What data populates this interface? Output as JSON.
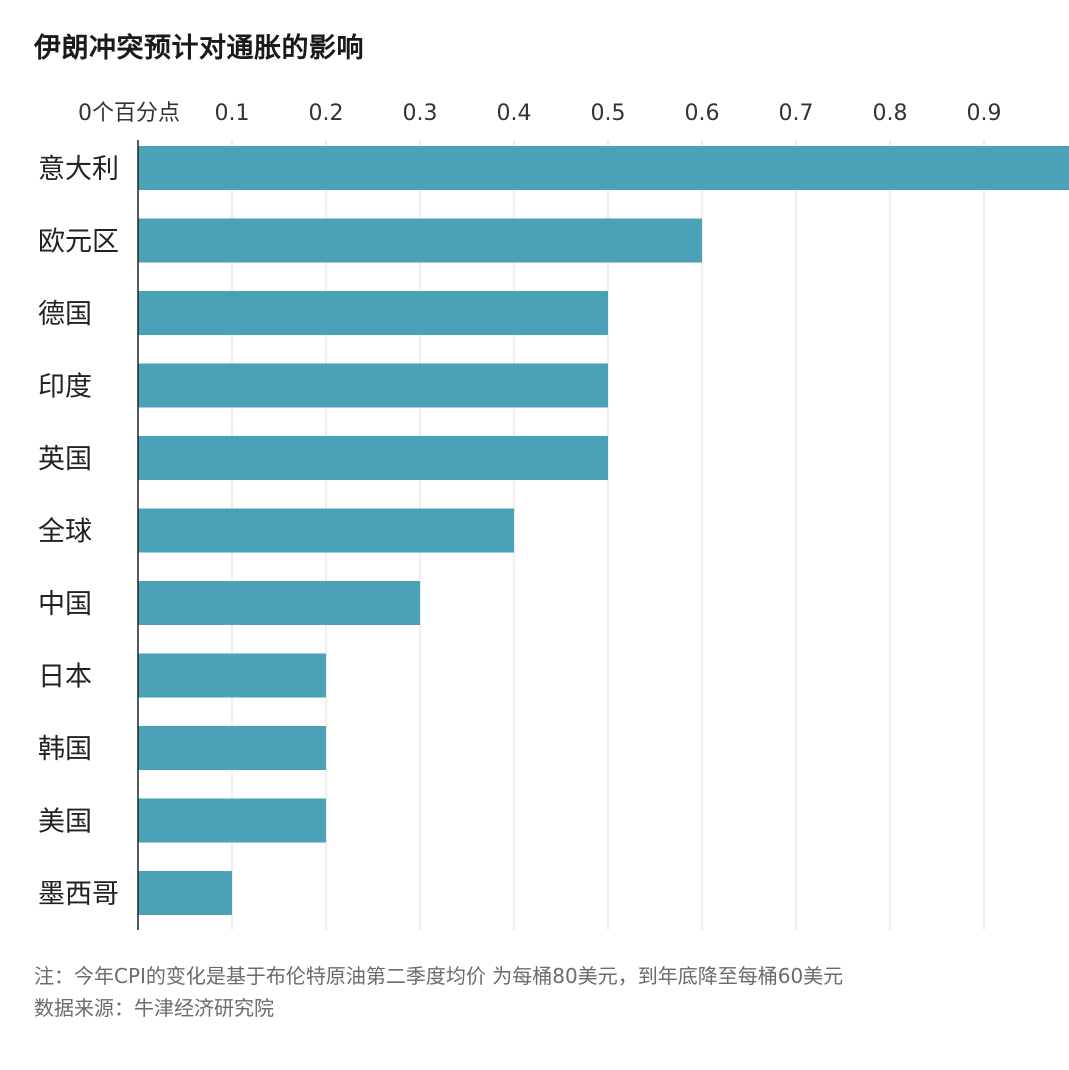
{
  "chart_data": {
    "type": "bar",
    "orientation": "horizontal",
    "title": "伊朗冲突预计对通胀的影响",
    "categories": [
      "意大利",
      "欧元区",
      "德国",
      "印度",
      "英国",
      "全球",
      "中国",
      "日本",
      "韩国",
      "美国",
      "墨西哥"
    ],
    "values": [
      1.0,
      0.6,
      0.5,
      0.5,
      0.5,
      0.4,
      0.3,
      0.2,
      0.2,
      0.2,
      0.1
    ],
    "xlim": [
      0,
      1.0
    ],
    "tick_labels": [
      "0个百分点",
      "0.1",
      "0.2",
      "0.3",
      "0.4",
      "0.5",
      "0.6",
      "0.7",
      "0.8",
      "0.9"
    ],
    "tick_values": [
      0,
      0.1,
      0.2,
      0.3,
      0.4,
      0.5,
      0.6,
      0.7,
      0.8,
      0.9
    ],
    "axis_position": "top",
    "grid": true,
    "bar_color": "#4ba1b7"
  },
  "footnote": {
    "note": "注：今年CPI的变化是基于布伦特原油第二季度均价 为每桶80美元，到年底降至每桶60美元",
    "source": "数据来源：牛津经济研究院"
  }
}
